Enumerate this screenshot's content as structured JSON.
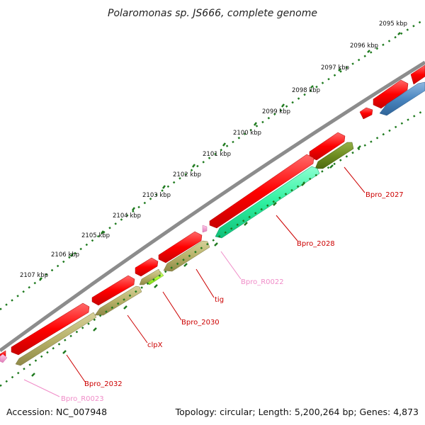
{
  "title": "Polaromonas sp. JS666, complete genome",
  "footer": {
    "accession": "Accession: NC_007948",
    "summary": "Topology: circular; Length: 5,200,264 bp; Genes: 4,873"
  },
  "kbp_labels": [
    "2095 kbp",
    "2096 kbp",
    "2097 kbp",
    "2098 kbp",
    "2099 kbp",
    "2100 kbp",
    "2101 kbp",
    "2102 kbp",
    "2103 kbp",
    "2104 kbp",
    "2105 kbp",
    "2106 kbp",
    "2107 kbp"
  ],
  "gene_labels": [
    {
      "text": "Bpro_2027",
      "color": "#cc0000"
    },
    {
      "text": "Bpro_2028",
      "color": "#cc0000"
    },
    {
      "text": "Bpro_R0022",
      "color": "#f08cc8"
    },
    {
      "text": "tig",
      "color": "#cc0000"
    },
    {
      "text": "Bpro_2030",
      "color": "#cc0000"
    },
    {
      "text": "clpX",
      "color": "#cc0000"
    },
    {
      "text": "Bpro_2032",
      "color": "#cc0000"
    },
    {
      "text": "Bpro_R0023",
      "color": "#f08cc8"
    }
  ],
  "colors": {
    "backbone": "#8c8c8c",
    "gene_red": "#ff0000",
    "gene_olive": "#b8b26a",
    "gene_darkolive": "#6e8c20",
    "gene_spring": "#2ef0a0",
    "gene_lime": "#aaff33",
    "gene_blue": "#4a86c0",
    "rna_pink": "#f49ad0",
    "tick_green": "#1e7a1e"
  }
}
